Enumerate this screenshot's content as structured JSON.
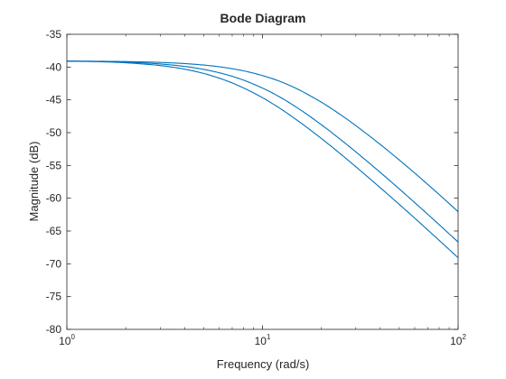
{
  "chart_data": {
    "type": "line",
    "title": "Bode Diagram",
    "xlabel": "Frequency (rad/s)",
    "ylabel": "Magnitude (dB)",
    "xscale": "log",
    "xlim": [
      1,
      100
    ],
    "ylim": [
      -80,
      -35
    ],
    "grid": false,
    "x_ticks": [
      {
        "value": 1,
        "base": "10",
        "exp": "0"
      },
      {
        "value": 10,
        "base": "10",
        "exp": "1"
      },
      {
        "value": 100,
        "base": "10",
        "exp": "2"
      }
    ],
    "y_ticks": [
      -35,
      -40,
      -45,
      -50,
      -55,
      -60,
      -65,
      -70,
      -75,
      -80
    ],
    "line_color": "#0072bd",
    "series": [
      {
        "x": [
          1,
          1.5,
          2,
          3,
          4,
          5,
          6,
          7,
          8,
          10,
          12,
          15,
          20,
          25,
          30,
          40,
          50,
          60,
          70,
          80,
          90,
          100
        ],
        "values": [
          -39.08,
          -39.12,
          -39.16,
          -39.29,
          -39.47,
          -39.69,
          -39.95,
          -40.25,
          -40.57,
          -41.3,
          -42.07,
          -43.31,
          -45.36,
          -47.24,
          -48.93,
          -51.8,
          -54.16,
          -56.16,
          -57.9,
          -59.43,
          -60.81,
          -62.05
        ]
      },
      {
        "x": [
          1,
          1.5,
          2,
          3,
          4,
          5,
          6,
          7,
          8,
          10,
          12,
          15,
          20,
          25,
          30,
          40,
          50,
          60,
          70,
          80,
          90,
          100
        ],
        "values": [
          -39.09,
          -39.15,
          -39.25,
          -39.53,
          -39.9,
          -40.35,
          -40.86,
          -41.41,
          -41.99,
          -43.2,
          -44.41,
          -46.17,
          -48.79,
          -51.02,
          -52.93,
          -56.06,
          -58.57,
          -60.67,
          -62.46,
          -64.03,
          -65.43,
          -66.68
        ]
      },
      {
        "x": [
          1,
          1.5,
          2,
          3,
          4,
          5,
          6,
          7,
          8,
          10,
          12,
          15,
          20,
          25,
          30,
          40,
          50,
          60,
          70,
          80,
          90,
          100
        ],
        "values": [
          -39.1,
          -39.19,
          -39.35,
          -39.77,
          -40.32,
          -40.97,
          -41.68,
          -42.42,
          -43.18,
          -44.67,
          -46.1,
          -48.08,
          -50.89,
          -53.22,
          -55.2,
          -58.4,
          -60.93,
          -63.04,
          -64.85,
          -66.42,
          -67.82,
          -69.08
        ]
      }
    ]
  }
}
